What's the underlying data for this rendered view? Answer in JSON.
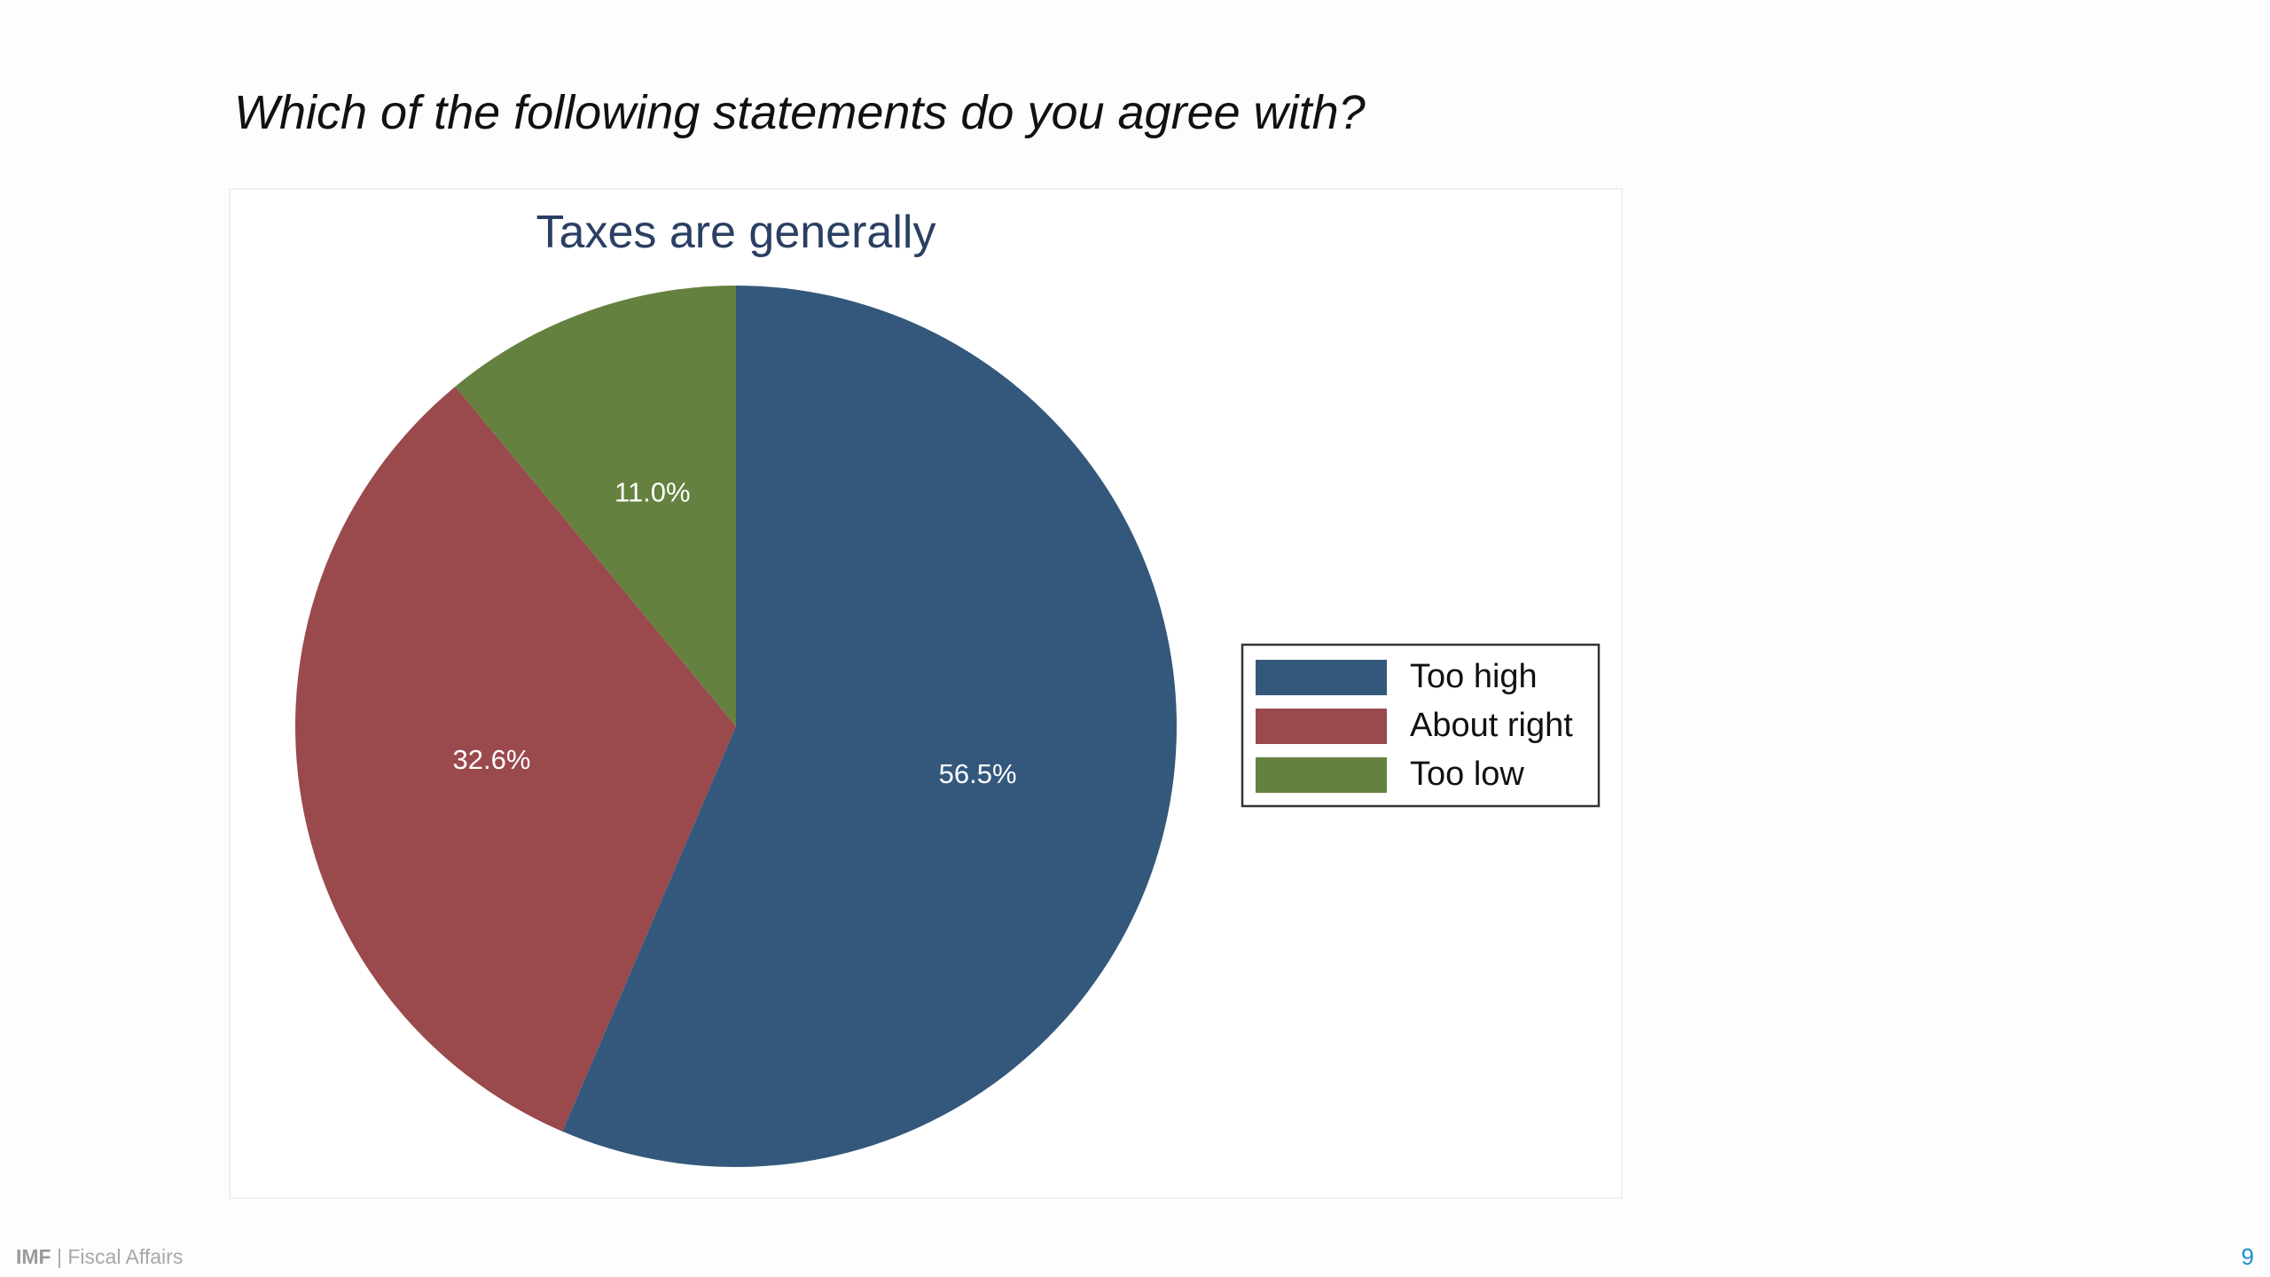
{
  "slide": {
    "question": "Which of the following statements do you agree with?",
    "footer_brand": "IMF",
    "footer_separator": "|",
    "footer_org": "Fiscal Affairs",
    "page_number": "9"
  },
  "chart_data": {
    "type": "pie",
    "title": "Taxes are generally",
    "categories": [
      "Too high",
      "About right",
      "Too low"
    ],
    "values": [
      56.5,
      32.6,
      11.0
    ],
    "labels": [
      "56.5%",
      "32.6%",
      "11.0%"
    ],
    "colors": [
      "#34587c",
      "#9a494d",
      "#65813f"
    ],
    "start": "12 o'clock, clockwise",
    "legend_position": "right"
  }
}
